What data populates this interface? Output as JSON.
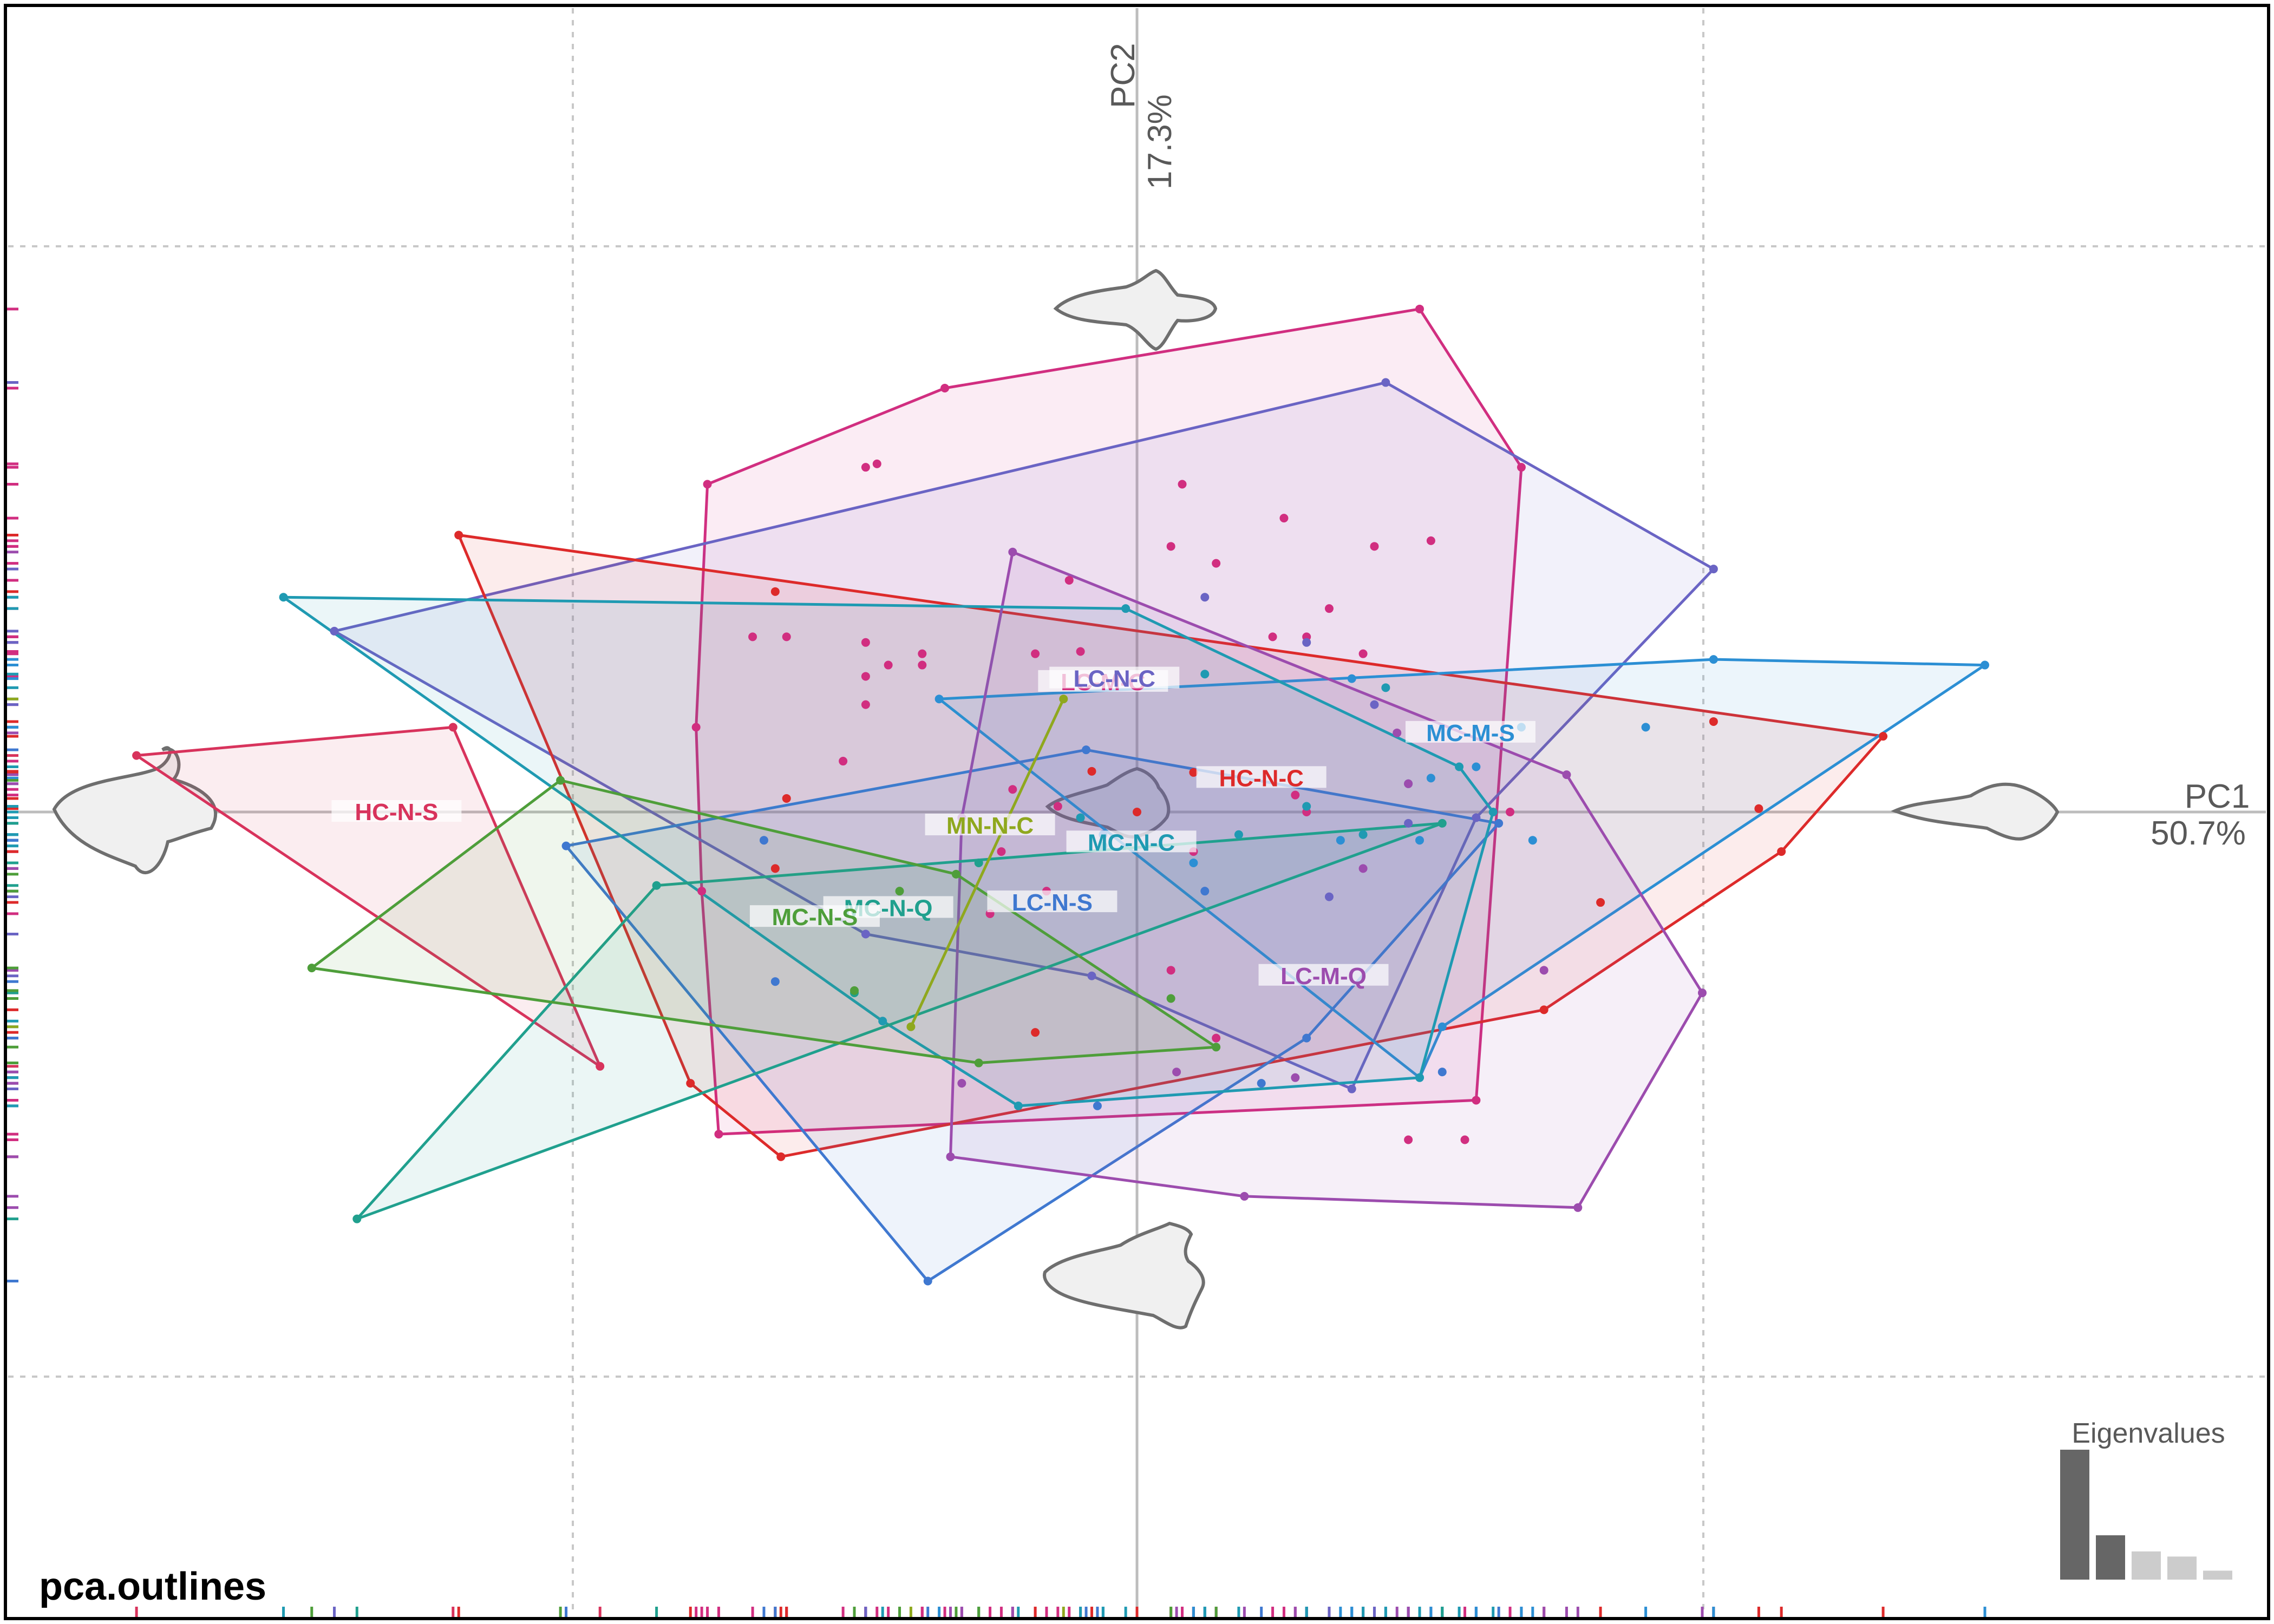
{
  "title": "pca.outlines",
  "chart_data": {
    "type": "scatter",
    "title": "pca.outlines",
    "x_axis": {
      "label": "PC1",
      "percent": "50.7%",
      "range": [
        -1.0,
        1.0
      ],
      "gridlines": [
        -0.5,
        0,
        0.5
      ]
    },
    "y_axis": {
      "label": "PC2",
      "percent": "17.3%",
      "range": [
        -0.5,
        0.5
      ],
      "gridlines": [
        -0.5,
        0,
        0.5
      ]
    },
    "grid": true,
    "rug": true,
    "colors": {
      "HC-N-C": "#dd2a2a",
      "HC-N-S": "#d8335c",
      "MC-M-S": "#2c8fd4",
      "LC-M-C": "#d12e80",
      "LC-N-C": "#6a64c4",
      "LC-N-S": "#3f78d0",
      "LC-M-Q": "#9c4cae",
      "MC-N-C": "#1f9ab2",
      "MC-N-Q": "#20a08e",
      "MC-N-S": "#4e9e3a",
      "MN-N-C": "#8fa81e"
    },
    "groups": [
      {
        "name": "LC-M-C",
        "label_pos": [
          -0.03,
          0.115
        ],
        "hull": [
          [
            -0.38,
            0.29
          ],
          [
            -0.17,
            0.375
          ],
          [
            0.25,
            0.445
          ],
          [
            0.34,
            0.305
          ],
          [
            0.3,
            -0.255
          ],
          [
            -0.37,
            -0.285
          ],
          [
            -0.385,
            -0.07
          ],
          [
            -0.39,
            0.075
          ]
        ],
        "points": [
          [
            -0.24,
            0.305
          ],
          [
            -0.23,
            0.308
          ],
          [
            -0.31,
            0.155
          ],
          [
            -0.34,
            0.155
          ],
          [
            -0.24,
            0.15
          ],
          [
            -0.19,
            0.13
          ],
          [
            -0.24,
            0.12
          ],
          [
            -0.24,
            0.095
          ],
          [
            -0.19,
            0.14
          ],
          [
            -0.09,
            0.14
          ],
          [
            -0.06,
            0.205
          ],
          [
            -0.05,
            0.142
          ],
          [
            0.04,
            0.29
          ],
          [
            0.03,
            0.235
          ],
          [
            0.07,
            0.22
          ],
          [
            0.13,
            0.26
          ],
          [
            0.2,
            0.14
          ],
          [
            0.17,
            0.18
          ],
          [
            0.21,
            0.235
          ],
          [
            0.26,
            0.24
          ],
          [
            0.12,
            0.155
          ],
          [
            0.15,
            0.155
          ],
          [
            -0.22,
            0.13
          ],
          [
            0.33,
            0.0
          ],
          [
            0.07,
            -0.2
          ],
          [
            -0.26,
            0.045
          ],
          [
            -0.12,
            -0.035
          ],
          [
            -0.07,
            0.005
          ],
          [
            -0.08,
            -0.07
          ],
          [
            0.03,
            -0.14
          ],
          [
            0.14,
            0.015
          ],
          [
            0.15,
            0.0
          ],
          [
            -0.13,
            -0.09
          ],
          [
            -0.11,
            0.02
          ],
          [
            0.05,
            -0.035
          ],
          [
            0.24,
            -0.29
          ],
          [
            0.29,
            -0.29
          ]
        ]
      },
      {
        "name": "LC-N-C",
        "label_pos": [
          -0.02,
          0.118
        ],
        "hull": [
          [
            -0.71,
            0.16
          ],
          [
            0.22,
            0.38
          ],
          [
            0.51,
            0.215
          ],
          [
            0.3,
            -0.005
          ],
          [
            0.19,
            -0.245
          ],
          [
            -0.04,
            -0.145
          ],
          [
            -0.24,
            -0.108
          ]
        ],
        "points": [
          [
            0.06,
            0.19
          ],
          [
            0.21,
            0.095
          ],
          [
            0.15,
            0.15
          ],
          [
            0.24,
            0.025
          ],
          [
            0.24,
            -0.01
          ],
          [
            0.17,
            -0.075
          ]
        ]
      },
      {
        "name": "HC-N-C",
        "label_pos": [
          0.11,
          0.03
        ],
        "hull": [
          [
            -0.6,
            0.245
          ],
          [
            0.66,
            0.067
          ],
          [
            0.57,
            -0.035
          ],
          [
            0.36,
            -0.175
          ],
          [
            -0.315,
            -0.305
          ],
          [
            -0.395,
            -0.24
          ]
        ],
        "points": [
          [
            -0.32,
            0.195
          ],
          [
            -0.31,
            0.012
          ],
          [
            -0.32,
            -0.05
          ],
          [
            0.51,
            0.08
          ],
          [
            0.55,
            0.003
          ],
          [
            0.41,
            -0.08
          ],
          [
            -0.09,
            -0.195
          ],
          [
            0.0,
            0.0
          ],
          [
            0.05,
            0.035
          ],
          [
            -0.04,
            0.036
          ]
        ]
      },
      {
        "name": "HC-N-S",
        "label_pos": [
          -0.655,
          0.0
        ],
        "hull": [
          [
            -0.885,
            0.05
          ],
          [
            -0.605,
            0.075
          ],
          [
            -0.475,
            -0.225
          ]
        ],
        "points": []
      },
      {
        "name": "MC-M-S",
        "label_pos": [
          0.295,
          0.07
        ],
        "hull": [
          [
            -0.175,
            0.1
          ],
          [
            0.51,
            0.135
          ],
          [
            0.75,
            0.13
          ],
          [
            0.27,
            -0.19
          ],
          [
            0.25,
            -0.235
          ]
        ],
        "points": [
          [
            0.3,
            0.04
          ],
          [
            0.34,
            0.075
          ],
          [
            0.45,
            0.075
          ],
          [
            0.19,
            0.118
          ],
          [
            0.26,
            0.03
          ],
          [
            0.35,
            -0.025
          ],
          [
            0.25,
            -0.025
          ],
          [
            0.18,
            -0.025
          ],
          [
            0.05,
            -0.045
          ]
        ]
      },
      {
        "name": "LC-N-S",
        "label_pos": [
          -0.075,
          -0.08
        ],
        "hull": [
          [
            -0.505,
            -0.03
          ],
          [
            -0.045,
            0.055
          ],
          [
            0.32,
            -0.01
          ],
          [
            0.15,
            -0.2
          ],
          [
            -0.185,
            -0.415
          ]
        ],
        "points": [
          [
            -0.33,
            -0.025
          ],
          [
            -0.32,
            -0.15
          ],
          [
            -0.035,
            -0.26
          ],
          [
            0.11,
            -0.24
          ],
          [
            0.27,
            -0.23
          ],
          [
            0.06,
            -0.07
          ],
          [
            -0.03,
            -0.02
          ]
        ]
      },
      {
        "name": "LC-M-Q",
        "label_pos": [
          0.165,
          -0.145
        ],
        "hull": [
          [
            -0.11,
            0.23
          ],
          [
            0.38,
            0.033
          ],
          [
            0.5,
            -0.16
          ],
          [
            0.39,
            -0.35
          ],
          [
            0.095,
            -0.34
          ],
          [
            -0.165,
            -0.305
          ],
          [
            -0.155,
            -0.005
          ]
        ],
        "points": [
          [
            0.36,
            -0.14
          ],
          [
            0.2,
            -0.05
          ],
          [
            0.23,
            0.07
          ],
          [
            0.24,
            0.025
          ],
          [
            -0.155,
            -0.24
          ],
          [
            0.035,
            -0.23
          ],
          [
            0.14,
            -0.235
          ]
        ]
      },
      {
        "name": "MC-N-C",
        "label_pos": [
          -0.005,
          -0.027
        ],
        "hull": [
          [
            -0.755,
            0.19
          ],
          [
            -0.01,
            0.18
          ],
          [
            0.285,
            0.04
          ],
          [
            0.315,
            0.0
          ],
          [
            0.25,
            -0.235
          ],
          [
            -0.105,
            -0.26
          ],
          [
            -0.225,
            -0.185
          ]
        ],
        "points": [
          [
            -0.05,
            -0.005
          ],
          [
            -0.03,
            -0.03
          ],
          [
            0.06,
            0.122
          ],
          [
            0.09,
            -0.02
          ],
          [
            0.15,
            0.005
          ],
          [
            0.22,
            0.11
          ],
          [
            0.2,
            -0.02
          ]
        ]
      },
      {
        "name": "MC-N-Q",
        "label_pos": [
          -0.22,
          -0.085
        ],
        "hull": [
          [
            -0.69,
            -0.36
          ],
          [
            -0.425,
            -0.065
          ],
          [
            0.27,
            -0.01
          ]
        ],
        "points": [
          [
            -0.14,
            -0.045
          ],
          [
            -0.25,
            -0.16
          ]
        ]
      },
      {
        "name": "MC-N-S",
        "label_pos": [
          -0.285,
          -0.093
        ],
        "hull": [
          [
            -0.51,
            0.028
          ],
          [
            -0.16,
            -0.055
          ],
          [
            0.07,
            -0.208
          ],
          [
            -0.14,
            -0.222
          ],
          [
            -0.73,
            -0.138
          ]
        ],
        "points": [
          [
            -0.25,
            -0.158
          ],
          [
            0.03,
            -0.165
          ],
          [
            -0.21,
            -0.07
          ]
        ]
      },
      {
        "name": "MN-N-C",
        "label_pos": [
          -0.13,
          -0.012
        ],
        "hull": [
          [
            -0.065,
            0.1
          ],
          [
            -0.2,
            -0.19
          ]
        ],
        "points": []
      }
    ],
    "shape_outlines": [
      "pc1-negative-outline",
      "pc1-positive-outline",
      "pc2-positive-outline",
      "pc2-negative-outline",
      "mean-outline"
    ],
    "eigenvalues": {
      "label": "Eigenvalues",
      "values": [
        0.507,
        0.173,
        0.11,
        0.09,
        0.035
      ]
    }
  }
}
